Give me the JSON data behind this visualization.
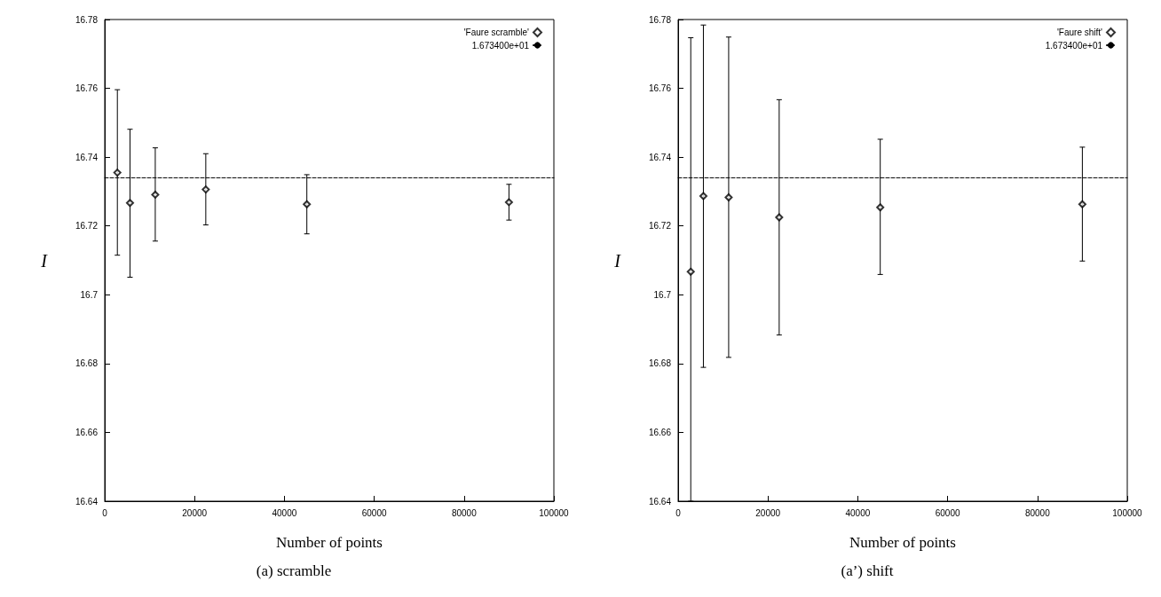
{
  "chart_data": [
    {
      "type": "scatter",
      "xlabel": "Number of points",
      "ylabel": "I",
      "annotations": [
        "(a) scramble"
      ],
      "x": [
        2812,
        5625,
        11250,
        22500,
        45000,
        90000
      ],
      "series": [
        {
          "name": "'Faure scramble'",
          "color": "#000000",
          "values": [
            16.7355,
            16.7267,
            16.7291,
            16.7306,
            16.7263,
            16.7269
          ],
          "errors": [
            [
              16.7115,
              16.7596
            ],
            [
              16.7051,
              16.7481
            ],
            [
              16.7156,
              16.7427
            ],
            [
              16.7203,
              16.741
            ],
            [
              16.7177,
              16.7349
            ],
            [
              16.7217,
              16.7321
            ]
          ]
        }
      ],
      "ref_lines": [
        {
          "axis": "y",
          "value": 16.734,
          "label": "1.673400e+01",
          "color": "#000000",
          "line_style": "dashed"
        }
      ],
      "xlim": [
        0,
        100000
      ],
      "xticks": [
        0,
        20000,
        40000,
        60000,
        80000,
        100000
      ],
      "ylim": [
        16.64,
        16.78
      ],
      "yticks": [
        16.64,
        16.66,
        16.68,
        16.7,
        16.72,
        16.74,
        16.76,
        16.78
      ],
      "grid": false,
      "legend": "top right",
      "marker": "diamond"
    },
    {
      "type": "scatter",
      "xlabel": "Number of points",
      "ylabel": "I",
      "annotations": [
        "(a’) shift"
      ],
      "x": [
        2812,
        5625,
        11250,
        22500,
        45000,
        90000
      ],
      "series": [
        {
          "name": "'Faure shift'",
          "color": "#000000",
          "values": [
            16.7067,
            16.7287,
            16.7283,
            16.7225,
            16.7254,
            16.7263
          ],
          "errors": [
            [
              16.64,
              16.7747
            ],
            [
              16.6789,
              16.7784
            ],
            [
              16.6818,
              16.7749
            ],
            [
              16.6883,
              16.7567
            ],
            [
              16.7059,
              16.7452
            ],
            [
              16.7098,
              16.7429
            ]
          ]
        }
      ],
      "ref_lines": [
        {
          "axis": "y",
          "value": 16.734,
          "label": "1.673400e+01",
          "color": "#000000",
          "line_style": "dashed"
        }
      ],
      "xlim": [
        0,
        100000
      ],
      "xticks": [
        0,
        20000,
        40000,
        60000,
        80000,
        100000
      ],
      "ylim": [
        16.64,
        16.78
      ],
      "yticks": [
        16.64,
        16.66,
        16.68,
        16.7,
        16.72,
        16.74,
        16.76,
        16.78
      ],
      "grid": false,
      "legend": "top right",
      "marker": "diamond"
    }
  ]
}
